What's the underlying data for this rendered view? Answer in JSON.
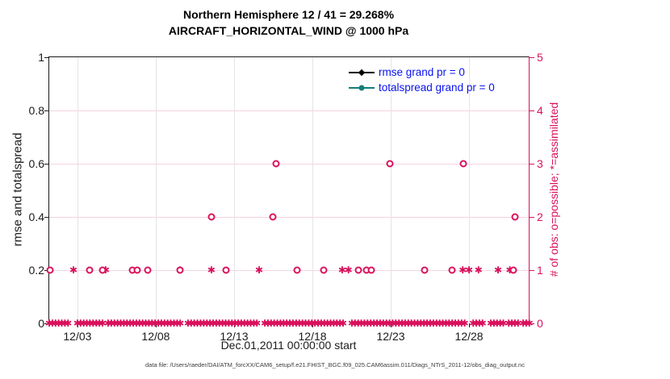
{
  "title": {
    "line1": "Northern Hemisphere 12 / 41 = 29.268%",
    "line2": "AIRCRAFT_HORIZONTAL_WIND @ 1000 hPa"
  },
  "legend": {
    "rmse_label": "rmse grand pr = 0",
    "totalspread_label": "totalspread grand pr = 0"
  },
  "footer": {
    "data_file_text": "data file: /Users/raeder/DAI/ATM_forcXX/CAM6_setup/f.e21.FHIST_BGC.f09_025.CAM6assim.011/Diags_NTrS_2011-12/obs_diag_output.nc"
  },
  "colors": {
    "obs_pink": "#d9115c",
    "rmse_black": "#000000",
    "totalspread_teal": "#0f8079",
    "legend_text_blue": "#0813ee",
    "vgrid_gray": "#e4e4e4",
    "hgrid_pink": "#f6d3e0"
  },
  "chart_data": {
    "type": "scatter",
    "title": "Northern Hemisphere 12 / 41 = 29.268%",
    "subtitle": "AIRCRAFT_HORIZONTAL_WIND @ 1000 hPa",
    "xlabel": "Dec.01,2011 00:00:00 start",
    "ylabel_left": "rmse and totalspread",
    "ylabel_right": "# of obs: o=possible; *=assimilated",
    "grid": true,
    "legend_position": "upper right inside, no box",
    "xlim_days": [
      1.2,
      31.86
    ],
    "x_ticks": [
      {
        "day": 3,
        "label": "12/03"
      },
      {
        "day": 8,
        "label": "12/08"
      },
      {
        "day": 13,
        "label": "12/13"
      },
      {
        "day": 18,
        "label": "12/18"
      },
      {
        "day": 23,
        "label": "12/23"
      },
      {
        "day": 28,
        "label": "12/28"
      }
    ],
    "ylim_left": [
      0,
      1
    ],
    "left_tick_labels": [
      "0",
      "0.2",
      "0.4",
      "0.6",
      "0.8",
      "1"
    ],
    "ylim_right": [
      0,
      5
    ],
    "right_tick_labels": [
      "0",
      "1",
      "2",
      "3",
      "4",
      "5"
    ],
    "series": [
      {
        "name": "rmse grand pr = 0",
        "marker": "diamond",
        "color": "#000000",
        "points": []
      },
      {
        "name": "totalspread grand pr = 0",
        "marker": "circle",
        "color": "#0f8079",
        "points": []
      },
      {
        "name": "# of obs possible (o), right axis",
        "marker": "o",
        "color": "#d9115c",
        "points": [
          [
            1.25,
            1
          ],
          [
            3.8,
            1
          ],
          [
            4.6,
            1
          ],
          [
            6.5,
            1
          ],
          [
            6.8,
            1
          ],
          [
            7.5,
            1
          ],
          [
            9.55,
            1
          ],
          [
            11.55,
            2
          ],
          [
            12.5,
            1
          ],
          [
            15.45,
            2
          ],
          [
            15.7,
            3
          ],
          [
            17.0,
            1
          ],
          [
            18.7,
            1
          ],
          [
            20.95,
            1
          ],
          [
            21.45,
            1
          ],
          [
            21.75,
            1
          ],
          [
            22.95,
            3
          ],
          [
            25.15,
            1
          ],
          [
            26.9,
            1
          ],
          [
            27.65,
            3
          ],
          [
            30.85,
            1
          ],
          [
            30.95,
            2
          ]
        ]
      },
      {
        "name": "# of obs assimilated (*), right axis",
        "marker": "*",
        "color": "#d9115c",
        "points": [
          [
            2.75,
            1
          ],
          [
            4.8,
            1
          ],
          [
            9.55,
            1
          ],
          [
            11.55,
            1
          ],
          [
            14.6,
            1
          ],
          [
            19.9,
            1
          ],
          [
            20.3,
            1
          ],
          [
            27.6,
            1
          ],
          [
            28.0,
            1
          ],
          [
            28.6,
            1
          ],
          [
            29.85,
            1
          ],
          [
            30.6,
            1
          ]
        ]
      },
      {
        "name": "zero-count band (o and * overlapping at 0)",
        "marker": "*",
        "color": "#d9115c",
        "count": 0,
        "segments_days": [
          [
            1.2,
            2.59
          ],
          [
            3.0,
            4.65
          ],
          [
            4.96,
            9.6
          ],
          [
            10.06,
            14.6
          ],
          [
            14.96,
            20.01
          ],
          [
            20.52,
            27.85
          ],
          [
            28.26,
            29.03
          ],
          [
            29.39,
            30.32
          ],
          [
            30.53,
            31.3
          ],
          [
            31.45,
            31.86
          ]
        ]
      }
    ]
  }
}
